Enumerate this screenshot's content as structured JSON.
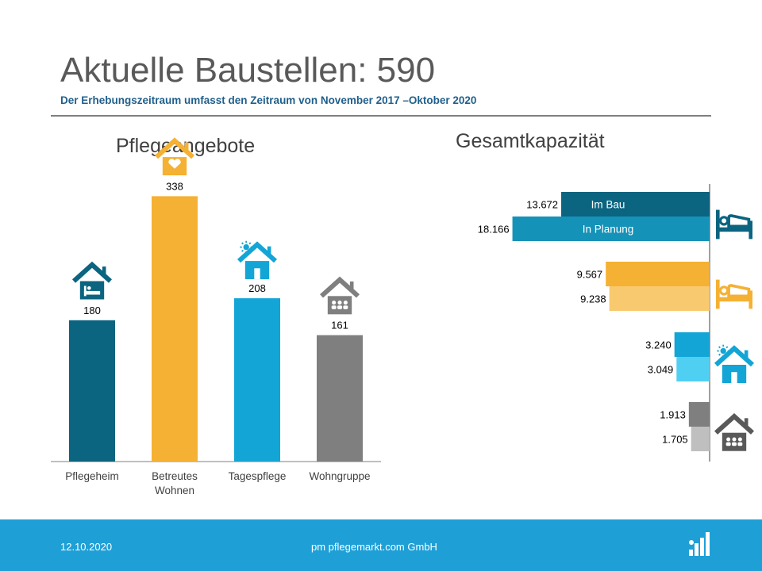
{
  "header": {
    "title": "Aktuelle Baustellen: 590",
    "subtitle": "Der Erhebungszeitraum umfasst den Zeitraum  von November 2017 –Oktober 2020"
  },
  "footer": {
    "date": "12.10.2020",
    "company": "pm pflegemarkt.com GmbH",
    "logo_icon": "pflegemarkt-logo-icon"
  },
  "chart_data": [
    {
      "type": "bar",
      "title": "Pflegeangebote",
      "categories": [
        "Pflegeheim",
        "Betreutes Wohnen",
        "Tagespflege",
        "Wohngruppe"
      ],
      "values": [
        180,
        338,
        208,
        161
      ],
      "value_labels": [
        "180",
        "338",
        "208",
        "161"
      ],
      "ylim": [
        0,
        400
      ],
      "colors": [
        "#0b6480",
        "#f5b133",
        "#13a5d6",
        "#7f7f7f"
      ],
      "icons": [
        "house-bed-icon",
        "house-heart-icon",
        "house-sun-icon",
        "house-group-icon"
      ]
    },
    {
      "type": "bar",
      "orientation": "horizontal",
      "title": "Gesamtkapazität",
      "series": [
        {
          "name": "Im Bau",
          "values": [
            13672,
            9567,
            3240,
            1913
          ]
        },
        {
          "name": "In Planung",
          "values": [
            18166,
            9238,
            3049,
            1705
          ]
        }
      ],
      "value_labels": [
        [
          "13.672",
          "9.567",
          "3.240",
          "1.913"
        ],
        [
          "18.166",
          "9.238",
          "3.049",
          "1.705"
        ]
      ],
      "xlim": [
        0,
        18500
      ],
      "colors": [
        [
          "#0b6480",
          "#1592b8"
        ],
        [
          "#f5b133",
          "#f9c96f"
        ],
        [
          "#13a5d6",
          "#4fd0f2"
        ],
        [
          "#7f7f7f",
          "#bfbfbf"
        ]
      ],
      "icons": [
        "bed-icon",
        "bed-icon",
        "house-sun-icon",
        "house-group-icon"
      ]
    }
  ]
}
